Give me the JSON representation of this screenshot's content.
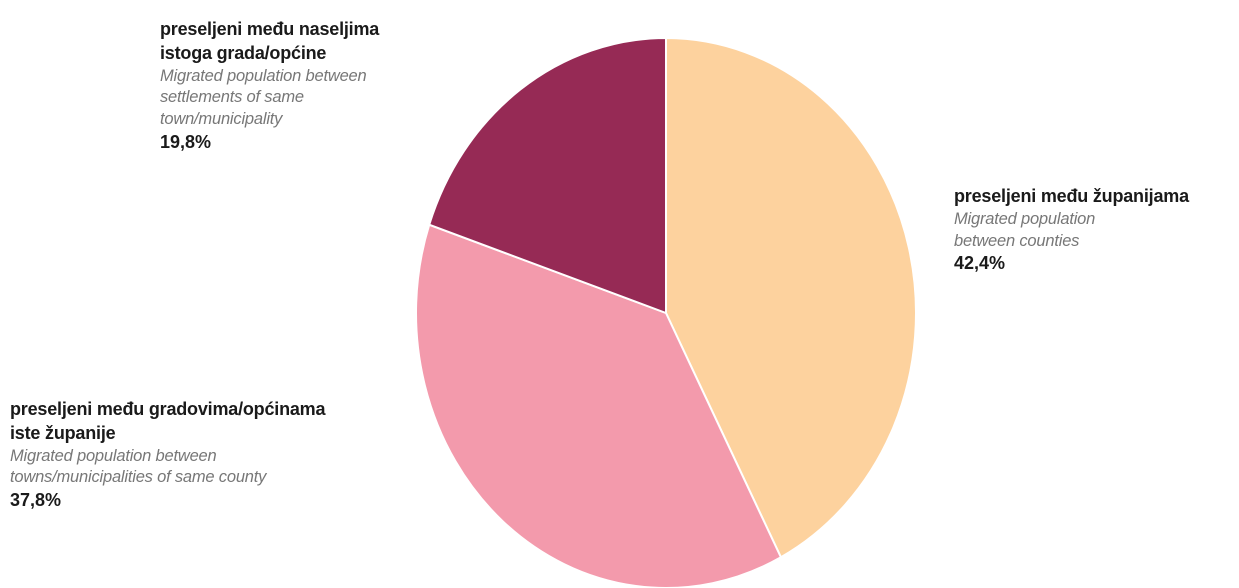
{
  "chart_data": {
    "type": "pie",
    "title": "",
    "slices": [
      {
        "label_hr": "preseljeni među županijama",
        "label_en": "Migrated population between counties",
        "value": 42.4,
        "value_label": "42,4%",
        "color": "#fdd29e"
      },
      {
        "label_hr": "preseljeni među gradovima/općinama iste županije",
        "label_en": "Migrated population between towns/municipalities of same county",
        "value": 37.8,
        "value_label": "37,8%",
        "color": "#f39aac"
      },
      {
        "label_hr": "preseljeni među naseljima istoga grada/općine",
        "label_en": "Migrated population between settlements of same town/municipality",
        "value": 19.8,
        "value_label": "19,8%",
        "color": "#962a55"
      }
    ],
    "start_angle": "12 o'clock",
    "direction": "clockwise",
    "legend": "none (labels placed beside slices)"
  },
  "labels": [
    {
      "hr_lines": [
        "preseljeni među županijama"
      ],
      "en_lines": [
        "Migrated population",
        "between counties"
      ],
      "pct": "42,4%"
    },
    {
      "hr_lines": [
        "preseljeni među gradovima/općinama",
        "iste županije"
      ],
      "en_lines": [
        "Migrated population between",
        "towns/municipalities of same county"
      ],
      "pct": "37,8%"
    },
    {
      "hr_lines": [
        "preseljeni među naseljima",
        "istoga grada/općine"
      ],
      "en_lines": [
        "Migrated population between",
        "settlements of same",
        "town/municipality"
      ],
      "pct": "19,8%"
    }
  ]
}
